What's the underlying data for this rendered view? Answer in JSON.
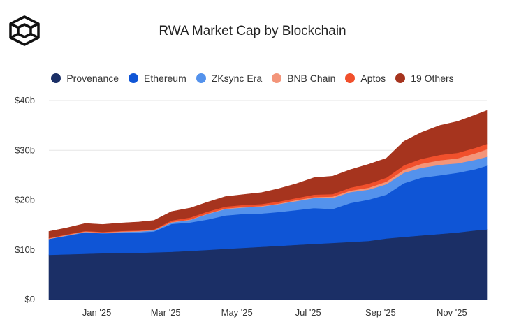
{
  "header": {
    "title": "RWA Market Cap by Blockchain",
    "logo_icon": "cube-logo-icon",
    "accent_color": "#8e33c7"
  },
  "legend": {
    "items": [
      {
        "label": "Provenance",
        "color": "#1b2f66"
      },
      {
        "label": "Ethereum",
        "color": "#0f55d6"
      },
      {
        "label": "ZKsync Era",
        "color": "#5492ec"
      },
      {
        "label": "BNB Chain",
        "color": "#f3957a"
      },
      {
        "label": "Aptos",
        "color": "#f1502c"
      },
      {
        "label": "19 Others",
        "color": "#a6341e"
      }
    ]
  },
  "chart_data": {
    "type": "area",
    "stacked": true,
    "title": "RWA Market Cap by Blockchain",
    "xlabel": "",
    "ylabel": "",
    "ylim": [
      0,
      40
    ],
    "y_unit": "billion USD",
    "yticks": [
      "$0",
      "$10b",
      "$20b",
      "$30b",
      "$40b"
    ],
    "xticks": [
      "Jan '25",
      "Mar '25",
      "May '25",
      "Jul '25",
      "Sep '25",
      "Nov '25"
    ],
    "grid": true,
    "legend_position": "top",
    "x": [
      "2024-12-05",
      "2024-12-20",
      "2025-01-05",
      "2025-01-20",
      "2025-02-05",
      "2025-02-20",
      "2025-03-05",
      "2025-03-20",
      "2025-04-05",
      "2025-04-20",
      "2025-05-05",
      "2025-05-20",
      "2025-06-05",
      "2025-06-20",
      "2025-07-05",
      "2025-07-20",
      "2025-08-05",
      "2025-08-20",
      "2025-09-05",
      "2025-09-20",
      "2025-10-05",
      "2025-10-20",
      "2025-11-05",
      "2025-11-20",
      "2025-12-05",
      "2025-12-15"
    ],
    "series": [
      {
        "name": "Provenance",
        "values": [
          9.0,
          9.1,
          9.2,
          9.3,
          9.4,
          9.4,
          9.5,
          9.6,
          9.8,
          10.0,
          10.2,
          10.4,
          10.6,
          10.8,
          11.0,
          11.2,
          11.4,
          11.6,
          11.8,
          12.3,
          12.6,
          12.9,
          13.2,
          13.5,
          13.9,
          14.1
        ]
      },
      {
        "name": "Ethereum",
        "values": [
          3.2,
          3.7,
          4.3,
          4.0,
          4.0,
          4.1,
          4.2,
          5.6,
          5.7,
          6.1,
          6.7,
          6.8,
          6.7,
          6.8,
          7.0,
          7.2,
          6.8,
          7.8,
          8.3,
          8.8,
          10.8,
          11.6,
          11.8,
          12.0,
          12.3,
          12.8
        ]
      },
      {
        "name": "ZKsync Era",
        "values": [
          0.0,
          0.1,
          0.1,
          0.1,
          0.2,
          0.2,
          0.2,
          0.3,
          0.5,
          1.1,
          1.3,
          1.3,
          1.4,
          1.6,
          1.8,
          2.0,
          2.2,
          2.2,
          2.0,
          2.1,
          2.1,
          2.0,
          2.1,
          1.9,
          1.9,
          1.8
        ]
      },
      {
        "name": "BNB Chain",
        "values": [
          0.1,
          0.1,
          0.1,
          0.1,
          0.1,
          0.1,
          0.1,
          0.1,
          0.1,
          0.1,
          0.1,
          0.1,
          0.1,
          0.1,
          0.2,
          0.2,
          0.3,
          0.3,
          0.4,
          0.5,
          0.6,
          0.8,
          0.9,
          1.0,
          1.3,
          1.5
        ]
      },
      {
        "name": "Aptos",
        "values": [
          0.1,
          0.1,
          0.1,
          0.1,
          0.1,
          0.1,
          0.1,
          0.3,
          0.4,
          0.4,
          0.4,
          0.4,
          0.4,
          0.4,
          0.4,
          0.5,
          0.5,
          0.6,
          0.8,
          0.8,
          0.9,
          1.0,
          1.1,
          1.1,
          1.1,
          1.1
        ]
      },
      {
        "name": "19 Others",
        "values": [
          1.3,
          1.3,
          1.5,
          1.5,
          1.6,
          1.7,
          1.8,
          1.8,
          1.9,
          1.9,
          2.0,
          2.1,
          2.3,
          2.6,
          2.9,
          3.4,
          3.6,
          3.6,
          3.9,
          3.9,
          4.8,
          5.3,
          5.9,
          6.3,
          6.6,
          6.7
        ]
      }
    ]
  }
}
